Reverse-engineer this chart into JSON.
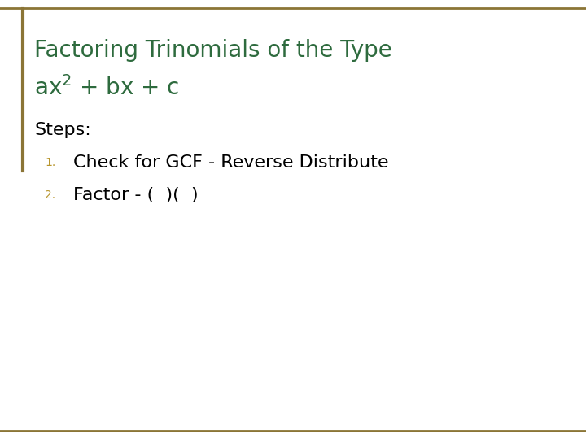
{
  "background_color": "#ffffff",
  "border_color": "#8B7536",
  "left_bar_color": "#8B7536",
  "title_line1": "Factoring Trinomials of the Type",
  "title_line2": "ax$^2$ + bx + c",
  "title_color": "#2E6B3E",
  "steps_label": "Steps:",
  "steps_label_color": "#000000",
  "step1_num": "1.",
  "step1_text": "Check for GCF - Reverse Distribute",
  "step2_num": "2.",
  "step2_text": "Factor - (  )(  )",
  "steps_num_color": "#B8962E",
  "steps_text_color": "#000000",
  "title_fontsize": 20,
  "steps_label_fontsize": 16,
  "steps_num_fontsize": 10,
  "steps_text_fontsize": 16,
  "border_linewidth": 2.0,
  "bar_linewidth": 3.0
}
